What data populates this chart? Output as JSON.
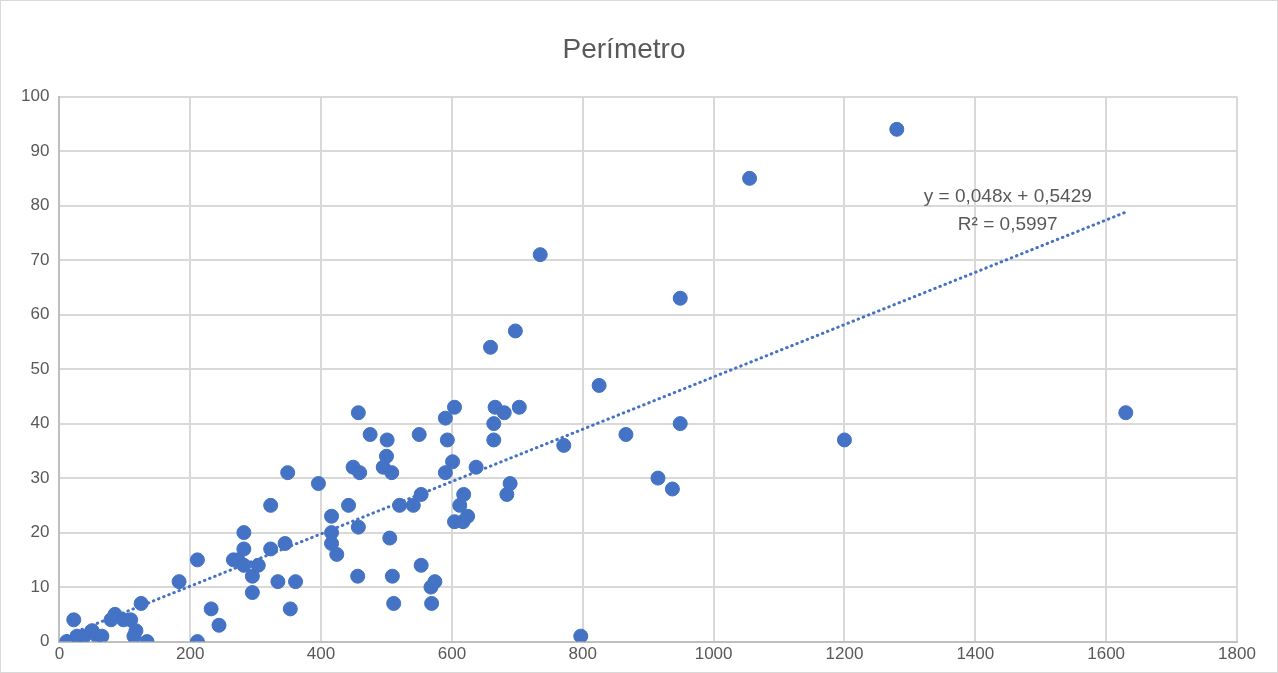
{
  "chart_data": {
    "type": "scatter",
    "title": "Perímetro",
    "xlim": [
      0,
      1800
    ],
    "xticks": [
      0,
      200,
      400,
      600,
      800,
      1000,
      1200,
      1400,
      1600,
      1800
    ],
    "ylim": [
      0,
      100
    ],
    "yticks": [
      0,
      10,
      20,
      30,
      40,
      50,
      60,
      70,
      80,
      90,
      100
    ],
    "grid": true,
    "legend": false,
    "marker": "circle",
    "annotations": [
      "y = 0,048x + 0,5429",
      "R² = 0,5997"
    ],
    "series": [
      {
        "type": "scatter",
        "color": "#4472c4",
        "x": [
          11,
          22,
          27,
          33,
          38,
          50,
          58,
          65,
          79,
          85,
          98,
          109,
          114,
          117,
          125,
          134,
          183,
          211,
          211,
          232,
          244,
          266,
          273,
          282,
          282,
          282,
          295,
          295,
          304,
          323,
          323,
          334,
          345,
          349,
          353,
          361,
          396,
          416,
          416,
          416,
          424,
          442,
          449,
          456,
          457,
          457,
          459,
          475,
          495,
          500,
          501,
          505,
          508,
          509,
          511,
          520,
          541,
          550,
          553,
          553,
          568,
          569,
          574,
          590,
          593,
          590,
          601,
          604,
          604,
          612,
          617,
          618,
          624,
          637,
          659,
          664,
          664,
          666,
          680,
          684,
          689,
          697,
          703,
          735,
          771,
          797,
          825,
          866,
          915,
          937,
          949,
          949,
          1055,
          1200,
          1280,
          1630
        ],
        "values": [
          0,
          4,
          1,
          0,
          1,
          2,
          1,
          1,
          4,
          5,
          4,
          4,
          1,
          2,
          7,
          0,
          11,
          15,
          0,
          6,
          3,
          15,
          15,
          17,
          20,
          14,
          12,
          9,
          14,
          25,
          17,
          11,
          18,
          31,
          6,
          11,
          29,
          23,
          20,
          18,
          16,
          25,
          32,
          12,
          42,
          21,
          31,
          38,
          32,
          34,
          37,
          19,
          31,
          12,
          7,
          25,
          25,
          38,
          14,
          27,
          10,
          7,
          11,
          41,
          37,
          31,
          33,
          22,
          43,
          25,
          22,
          27,
          23,
          32,
          54,
          40,
          37,
          43,
          42,
          27,
          29,
          57,
          43,
          71,
          36,
          1,
          47,
          38,
          30,
          28,
          63,
          40,
          85,
          37,
          94,
          42
        ]
      },
      {
        "type": "line",
        "color": "#4472c4",
        "line_style": "dotted",
        "marker": "none",
        "x": [
          11,
          1630
        ],
        "values": [
          1.1,
          78.8
        ]
      }
    ]
  }
}
